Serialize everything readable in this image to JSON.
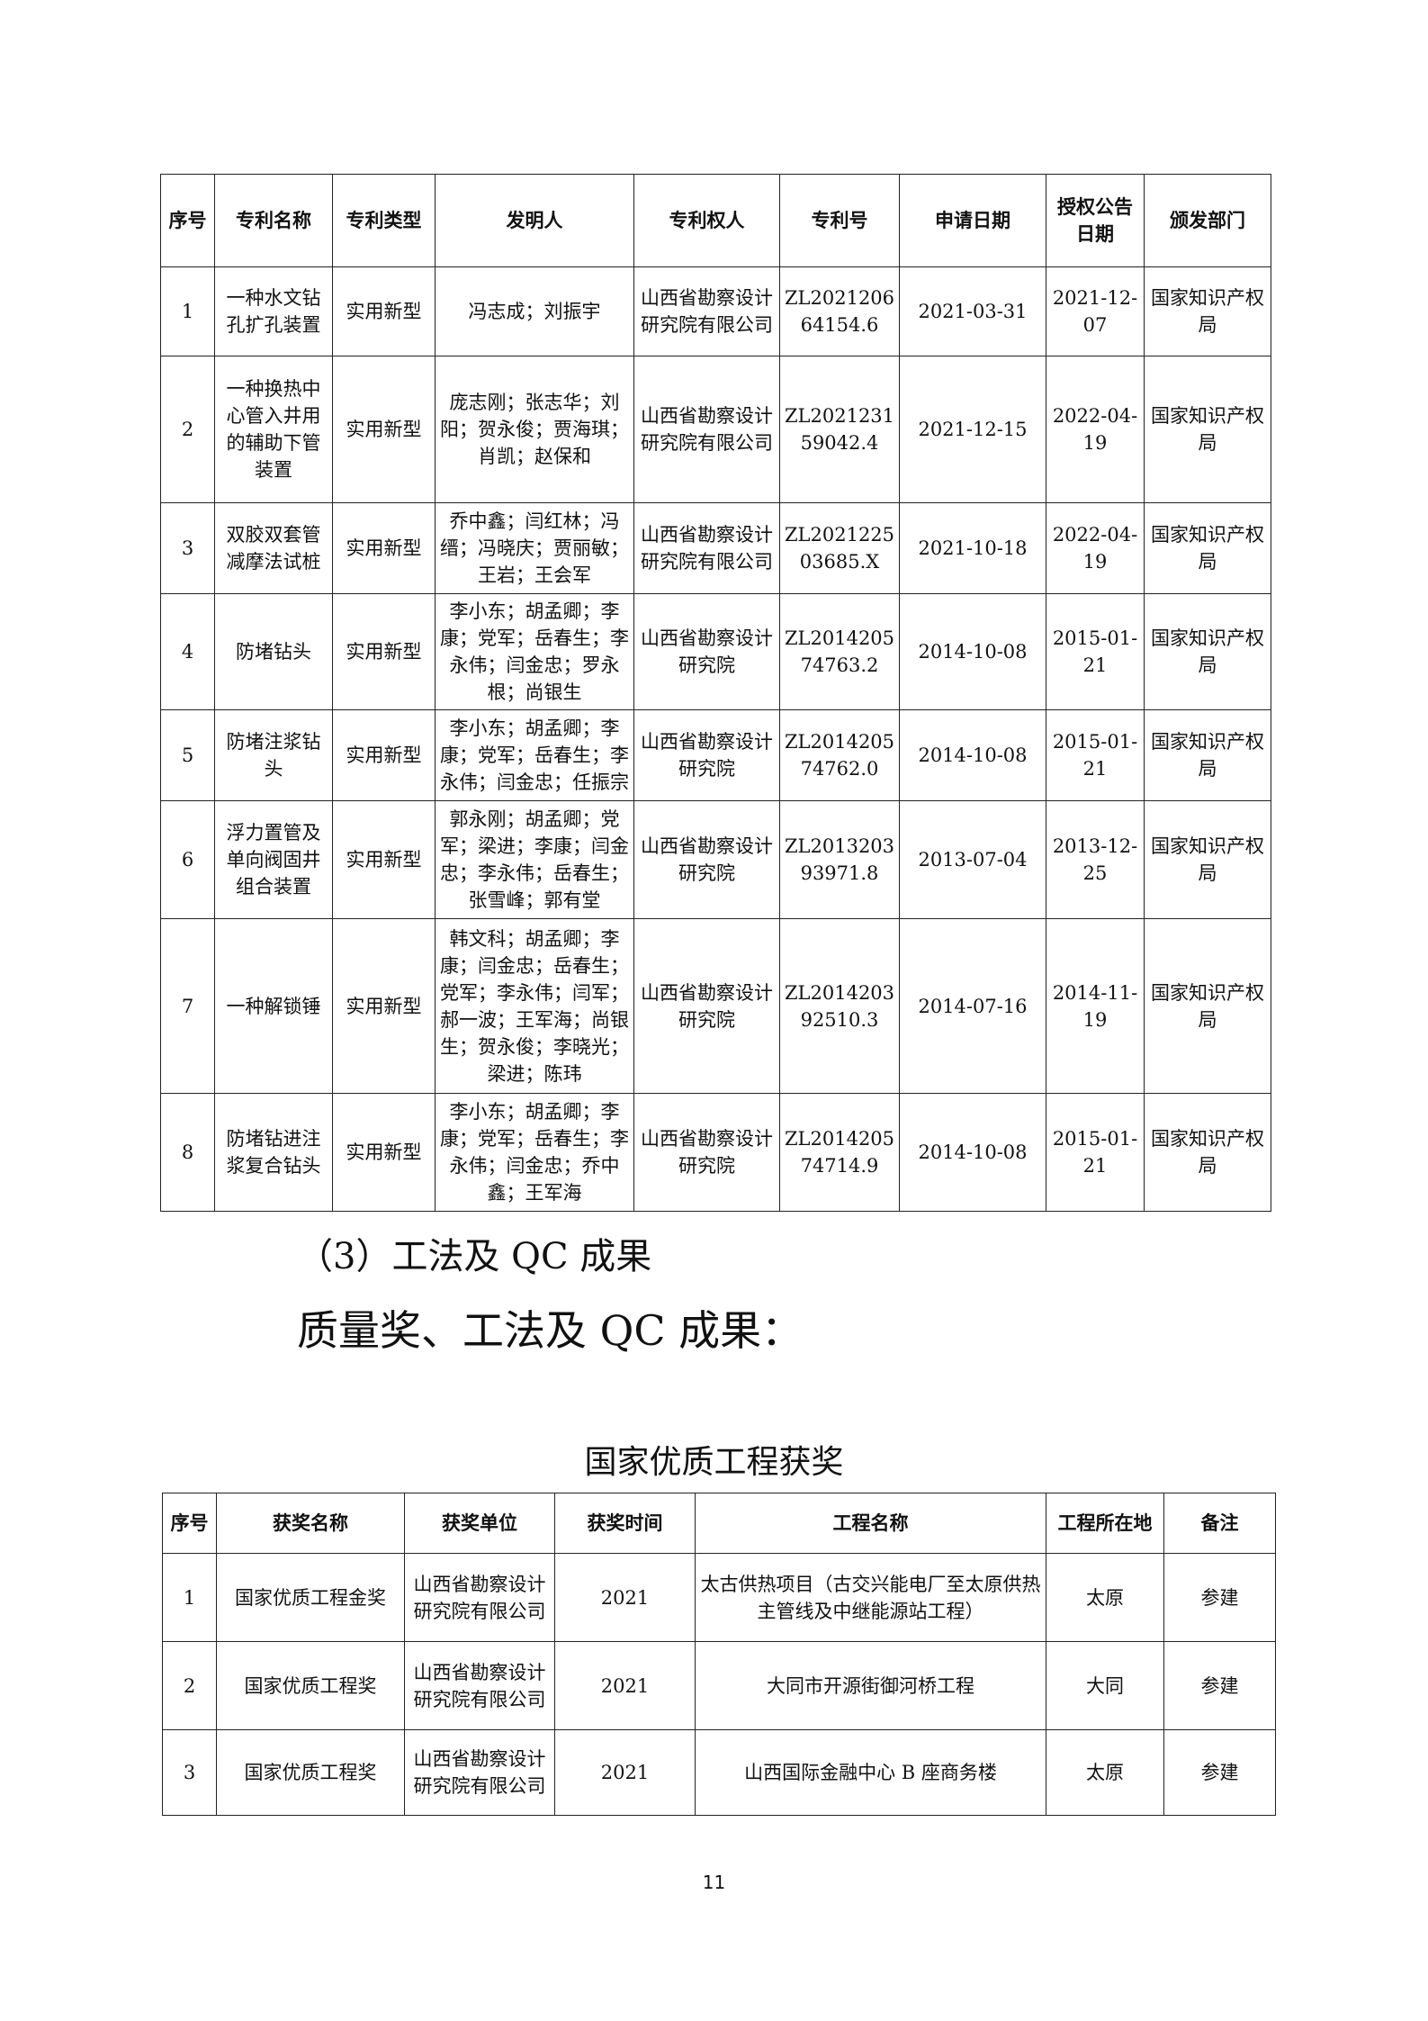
{
  "patents": {
    "headers": [
      "序号",
      "专利名称",
      "专利类型",
      "发明人",
      "专利权人",
      "专利号",
      "申请日期",
      "授权公告日期",
      "颁发部门"
    ],
    "rows": [
      [
        "1",
        "一种水文钻孔扩孔装置",
        "实用新型",
        "冯志成；刘振宇",
        "山西省勘察设计研究院有限公司",
        "ZL202120664154.6",
        "2021-03-31",
        "2021-12-07",
        "国家知识产权局"
      ],
      [
        "2",
        "一种换热中心管入井用的辅助下管装置",
        "实用新型",
        "庞志刚；张志华；刘阳；贺永俊；贾海琪；肖凯；赵保和",
        "山西省勘察设计研究院有限公司",
        "ZL202123159042.4",
        "2021-12-15",
        "2022-04-19",
        "国家知识产权局"
      ],
      [
        "3",
        "双胶双套管减摩法试桩",
        "实用新型",
        "乔中鑫；闫红林；冯缙；冯晓庆；贾丽敏；王岩；王会军",
        "山西省勘察设计研究院有限公司",
        "ZL202122503685.X",
        "2021-10-18",
        "2022-04-19",
        "国家知识产权局"
      ],
      [
        "4",
        "防堵钻头",
        "实用新型",
        "李小东；胡孟卿；李康；党军；岳春生；李永伟；闫金忠；罗永根；尚银生",
        "山西省勘察设计研究院",
        "ZL201420574763.2",
        "2014-10-08",
        "2015-01-21",
        "国家知识产权局"
      ],
      [
        "5",
        "防堵注浆钻头",
        "实用新型",
        "李小东；胡孟卿；李康；党军；岳春生；李永伟；闫金忠；任振宗",
        "山西省勘察设计研究院",
        "ZL201420574762.0",
        "2014-10-08",
        "2015-01-21",
        "国家知识产权局"
      ],
      [
        "6",
        "浮力置管及单向阀固井组合装置",
        "实用新型",
        "郭永刚；胡孟卿；党军；梁进；李康；闫金忠；李永伟；岳春生；张雪峰；郭有堂",
        "山西省勘察设计研究院",
        "ZL201320393971.8",
        "2013-07-04",
        "2013-12-25",
        "国家知识产权局"
      ],
      [
        "7",
        "一种解锁锤",
        "实用新型",
        "韩文科；胡孟卿；李康；闫金忠；岳春生；党军；李永伟；闫军；郝一波；王军海；尚银生；贺永俊；李晓光；梁进；陈玮",
        "山西省勘察设计研究院",
        "ZL201420392510.3",
        "2014-07-16",
        "2014-11-19",
        "国家知识产权局"
      ],
      [
        "8",
        "防堵钻进注浆复合钻头",
        "实用新型",
        "李小东；胡孟卿；李康；党军；岳春生；李永伟；闫金忠；乔中鑫；王军海",
        "山西省勘察设计研究院",
        "ZL201420574714.9",
        "2014-10-08",
        "2015-01-21",
        "国家知识产权局"
      ]
    ]
  },
  "heading_3": "（3）工法及 QC 成果",
  "heading_quality": "质量奖、工法及 QC 成果：",
  "awards": {
    "caption": "国家优质工程获奖",
    "headers": [
      "序号",
      "获奖名称",
      "获奖单位",
      "获奖时间",
      "工程名称",
      "工程所在地",
      "备注"
    ],
    "rows": [
      [
        "1",
        "国家优质工程金奖",
        "山西省勘察设计研究院有限公司",
        "2021",
        "太古供热项目（古交兴能电厂至太原供热主管线及中继能源站工程）",
        "太原",
        "参建"
      ],
      [
        "2",
        "国家优质工程奖",
        "山西省勘察设计研究院有限公司",
        "2021",
        "大同市开源街御河桥工程",
        "大同",
        "参建"
      ],
      [
        "3",
        "国家优质工程奖",
        "山西省勘察设计研究院有限公司",
        "2021",
        "山西国际金融中心 B 座商务楼",
        "太原",
        "参建"
      ]
    ]
  },
  "page_number": "11"
}
